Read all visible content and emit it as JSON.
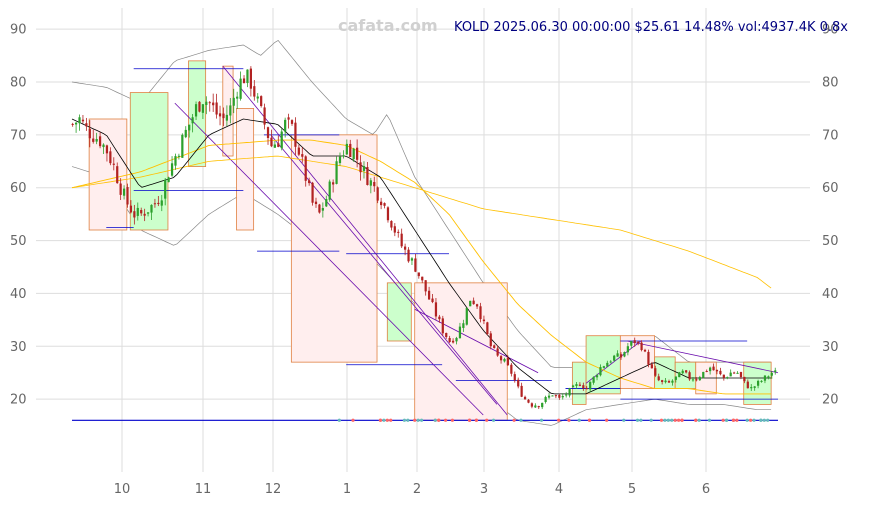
{
  "watermark": "cafata.com",
  "title": "KOLD 2025.06.30 00:00:00 $25.61 14.48% vol:4937.4K 0.8x",
  "chart_data": {
    "type": "candlestick",
    "title": "KOLD 2025.06.30 00:00:00 $25.61 14.48% vol:4937.4K 0.8x",
    "ticker": "KOLD",
    "date": "2025.06.30 00:00:00",
    "price": "$25.61",
    "change": "14.48%",
    "volume": "vol:4937.4K",
    "volume_ratio": "0.8x",
    "x_tick_labels": [
      "10",
      "11",
      "12",
      "1",
      "2",
      "3",
      "4",
      "5",
      "6"
    ],
    "y_tick_labels": [
      "20",
      "30",
      "40",
      "50",
      "60",
      "70",
      "80",
      "90"
    ],
    "ylim": [
      10,
      94
    ],
    "grid": true,
    "colors": {
      "up": "#2ca02c",
      "down": "#b22222",
      "ma_short": "#000000",
      "ma_long": "#ffc000",
      "band": "#888888",
      "level": "#0000cc",
      "trend": "#6a0dad",
      "box_up_fill": "#ccffcc",
      "box_down_fill": "#ffeeee",
      "box_edge": "#e08040"
    },
    "close_path": [
      [
        0,
        72
      ],
      [
        2,
        73
      ],
      [
        4,
        71
      ],
      [
        6,
        70
      ],
      [
        8,
        69
      ],
      [
        10,
        67
      ],
      [
        12,
        64
      ],
      [
        14,
        60
      ],
      [
        16,
        57
      ],
      [
        18,
        55
      ],
      [
        20,
        55
      ],
      [
        22,
        56
      ],
      [
        24,
        57
      ],
      [
        26,
        59
      ],
      [
        28,
        63
      ],
      [
        30,
        66
      ],
      [
        32,
        69
      ],
      [
        34,
        72
      ],
      [
        36,
        75
      ],
      [
        38,
        77
      ],
      [
        40,
        76
      ],
      [
        42,
        74
      ],
      [
        44,
        73
      ],
      [
        46,
        75
      ],
      [
        48,
        79
      ],
      [
        50,
        81
      ],
      [
        52,
        80
      ],
      [
        54,
        76
      ],
      [
        56,
        72
      ],
      [
        58,
        68
      ],
      [
        60,
        69
      ],
      [
        62,
        72
      ],
      [
        64,
        71
      ],
      [
        66,
        67
      ],
      [
        68,
        62
      ],
      [
        70,
        57
      ],
      [
        72,
        55
      ],
      [
        74,
        58
      ],
      [
        76,
        62
      ],
      [
        78,
        66
      ],
      [
        80,
        68
      ],
      [
        82,
        67
      ],
      [
        84,
        64
      ],
      [
        86,
        62
      ],
      [
        88,
        60
      ],
      [
        90,
        58
      ],
      [
        92,
        55
      ],
      [
        94,
        52
      ],
      [
        96,
        49
      ],
      [
        98,
        47
      ],
      [
        100,
        45
      ],
      [
        102,
        42
      ],
      [
        104,
        39
      ],
      [
        106,
        36
      ],
      [
        108,
        33
      ],
      [
        110,
        31
      ],
      [
        112,
        32
      ],
      [
        114,
        35
      ],
      [
        116,
        39
      ],
      [
        118,
        38
      ],
      [
        120,
        34
      ],
      [
        122,
        30
      ],
      [
        124,
        28
      ],
      [
        126,
        27
      ],
      [
        128,
        25
      ],
      [
        130,
        22
      ],
      [
        132,
        20
      ],
      [
        134,
        19
      ],
      [
        136,
        19
      ],
      [
        138,
        20
      ],
      [
        140,
        21
      ],
      [
        142,
        20
      ],
      [
        144,
        21
      ],
      [
        146,
        22
      ],
      [
        148,
        23
      ],
      [
        150,
        22
      ],
      [
        152,
        24
      ],
      [
        154,
        26
      ],
      [
        156,
        27
      ],
      [
        158,
        28
      ],
      [
        160,
        28
      ],
      [
        162,
        30
      ],
      [
        164,
        31
      ],
      [
        166,
        30
      ],
      [
        168,
        27
      ],
      [
        170,
        24
      ],
      [
        172,
        23
      ],
      [
        174,
        23
      ],
      [
        176,
        24
      ],
      [
        178,
        25
      ],
      [
        180,
        24
      ],
      [
        182,
        24
      ],
      [
        184,
        25
      ],
      [
        186,
        26
      ],
      [
        188,
        25
      ],
      [
        190,
        24
      ],
      [
        192,
        25
      ],
      [
        194,
        25
      ],
      [
        196,
        23
      ],
      [
        198,
        22
      ],
      [
        200,
        23
      ],
      [
        202,
        24
      ],
      [
        204,
        25
      ]
    ],
    "ma_short_path": [
      [
        0,
        73
      ],
      [
        10,
        70
      ],
      [
        20,
        60
      ],
      [
        30,
        62
      ],
      [
        40,
        70
      ],
      [
        50,
        73
      ],
      [
        60,
        72
      ],
      [
        70,
        66
      ],
      [
        80,
        66
      ],
      [
        90,
        62
      ],
      [
        100,
        52
      ],
      [
        110,
        42
      ],
      [
        120,
        33
      ],
      [
        130,
        26
      ],
      [
        140,
        21
      ],
      [
        150,
        21
      ],
      [
        160,
        24
      ],
      [
        170,
        27
      ],
      [
        180,
        24
      ],
      [
        190,
        24
      ],
      [
        200,
        24
      ],
      [
        204,
        24
      ]
    ],
    "ma_long_path": [
      [
        0,
        60
      ],
      [
        20,
        63
      ],
      [
        40,
        68
      ],
      [
        60,
        69
      ],
      [
        70,
        69
      ],
      [
        80,
        68
      ],
      [
        90,
        65
      ],
      [
        100,
        61
      ],
      [
        110,
        55
      ],
      [
        120,
        46
      ],
      [
        130,
        38
      ],
      [
        140,
        32
      ],
      [
        150,
        27
      ],
      [
        160,
        24
      ],
      [
        170,
        22
      ],
      [
        180,
        22
      ],
      [
        190,
        21
      ],
      [
        200,
        21
      ],
      [
        204,
        21
      ]
    ],
    "ma_macro_path": [
      [
        0,
        60
      ],
      [
        20,
        62
      ],
      [
        40,
        65
      ],
      [
        60,
        66
      ],
      [
        80,
        64
      ],
      [
        100,
        60
      ],
      [
        120,
        56
      ],
      [
        140,
        54
      ],
      [
        160,
        52
      ],
      [
        180,
        48
      ],
      [
        200,
        43
      ],
      [
        204,
        41
      ]
    ],
    "band_upper_path": [
      [
        0,
        80
      ],
      [
        10,
        79
      ],
      [
        20,
        76
      ],
      [
        30,
        84
      ],
      [
        40,
        86
      ],
      [
        50,
        87
      ],
      [
        55,
        85
      ],
      [
        60,
        88
      ],
      [
        70,
        80
      ],
      [
        80,
        73
      ],
      [
        88,
        70
      ],
      [
        92,
        74
      ],
      [
        96,
        68
      ],
      [
        100,
        62
      ],
      [
        110,
        52
      ],
      [
        120,
        42
      ],
      [
        130,
        33
      ],
      [
        140,
        26
      ],
      [
        150,
        26
      ],
      [
        160,
        30
      ],
      [
        170,
        32
      ],
      [
        180,
        27
      ],
      [
        190,
        27
      ],
      [
        200,
        27
      ],
      [
        204,
        27
      ]
    ],
    "band_lower_path": [
      [
        0,
        64
      ],
      [
        10,
        62
      ],
      [
        20,
        52
      ],
      [
        30,
        49
      ],
      [
        40,
        55
      ],
      [
        50,
        59
      ],
      [
        60,
        55
      ],
      [
        70,
        50
      ],
      [
        80,
        51
      ],
      [
        90,
        45
      ],
      [
        100,
        38
      ],
      [
        110,
        27
      ],
      [
        120,
        21
      ],
      [
        130,
        16
      ],
      [
        140,
        15
      ],
      [
        150,
        18
      ],
      [
        160,
        19
      ],
      [
        170,
        20
      ],
      [
        180,
        19
      ],
      [
        190,
        19
      ],
      [
        200,
        18
      ],
      [
        204,
        18
      ]
    ],
    "zones": [
      {
        "x0": 5,
        "x1": 16,
        "y0": 52,
        "y1": 73,
        "dir": "down"
      },
      {
        "x0": 17,
        "x1": 28,
        "y0": 52,
        "y1": 78,
        "dir": "up"
      },
      {
        "x0": 34,
        "x1": 39,
        "y0": 64,
        "y1": 84,
        "dir": "up"
      },
      {
        "x0": 44,
        "x1": 47,
        "y0": 66,
        "y1": 83,
        "dir": "down"
      },
      {
        "x0": 48,
        "x1": 53,
        "y0": 52,
        "y1": 75,
        "dir": "down"
      },
      {
        "x0": 64,
        "x1": 89,
        "y0": 27,
        "y1": 70,
        "dir": "down"
      },
      {
        "x0": 92,
        "x1": 99,
        "y0": 31,
        "y1": 42,
        "dir": "up"
      },
      {
        "x0": 100,
        "x1": 127,
        "y0": 16,
        "y1": 42,
        "dir": "down"
      },
      {
        "x0": 146,
        "x1": 150,
        "y0": 19,
        "y1": 27,
        "dir": "up"
      },
      {
        "x0": 150,
        "x1": 160,
        "y0": 21,
        "y1": 32,
        "dir": "up"
      },
      {
        "x0": 160,
        "x1": 170,
        "y0": 22,
        "y1": 32,
        "dir": "down"
      },
      {
        "x0": 170,
        "x1": 176,
        "y0": 22,
        "y1": 28,
        "dir": "up"
      },
      {
        "x0": 176,
        "x1": 182,
        "y0": 22,
        "y1": 27,
        "dir": "up"
      },
      {
        "x0": 182,
        "x1": 188,
        "y0": 21,
        "y1": 27,
        "dir": "down"
      },
      {
        "x0": 196,
        "x1": 204,
        "y0": 19,
        "y1": 27,
        "dir": "up"
      }
    ],
    "levels": [
      {
        "y": 16,
        "x0": 0,
        "x1": 206
      },
      {
        "y": 82.5,
        "x0": 18,
        "x1": 50
      },
      {
        "y": 59.5,
        "x0": 18,
        "x1": 50
      },
      {
        "y": 52.5,
        "x0": 10,
        "x1": 18
      },
      {
        "y": 70,
        "x0": 56,
        "x1": 78
      },
      {
        "y": 48,
        "x0": 54,
        "x1": 78
      },
      {
        "y": 47.5,
        "x0": 80,
        "x1": 110
      },
      {
        "y": 26.5,
        "x0": 80,
        "x1": 108
      },
      {
        "y": 23.5,
        "x0": 112,
        "x1": 140
      },
      {
        "y": 31,
        "x0": 160,
        "x1": 197
      },
      {
        "y": 22,
        "x0": 144,
        "x1": 160
      },
      {
        "y": 20,
        "x0": 160,
        "x1": 206
      }
    ],
    "trend_lines": [
      {
        "x0": 44,
        "y0": 83,
        "x1": 127,
        "y1": 17
      },
      {
        "x0": 30,
        "y0": 76,
        "x1": 120,
        "y1": 17
      },
      {
        "x0": 58,
        "y0": 70,
        "x1": 124,
        "y1": 19
      },
      {
        "x0": 100,
        "y0": 37,
        "x1": 136,
        "y1": 25
      },
      {
        "x0": 162,
        "y0": 31,
        "x1": 206,
        "y1": 25
      },
      {
        "x0": 150,
        "y0": 23,
        "x1": 166,
        "y1": 31
      }
    ]
  }
}
